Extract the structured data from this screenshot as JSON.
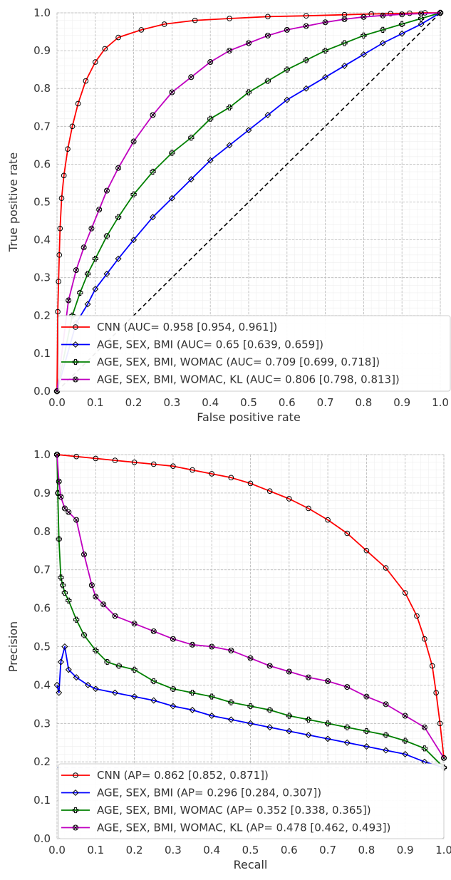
{
  "chart_data": [
    {
      "type": "line",
      "title": "",
      "xlabel": "False positive rate",
      "ylabel": "True positive rate",
      "xlim": [
        0,
        1
      ],
      "ylim": [
        0,
        1
      ],
      "grid": true,
      "legend_position": "lower-right",
      "ticks": [
        "0.0",
        "0.1",
        "0.2",
        "0.3",
        "0.4",
        "0.5",
        "0.6",
        "0.7",
        "0.8",
        "0.9",
        "1.0"
      ],
      "reference_line": {
        "style": "dashed",
        "color": "#000000",
        "x": [
          0,
          1
        ],
        "y": [
          0,
          1
        ]
      },
      "series": [
        {
          "name": "CNN (AUC= 0.958 [0.954, 0.961])",
          "color": "#ff0000",
          "marker": "circle",
          "x": [
            0.0,
            0.002,
            0.004,
            0.006,
            0.008,
            0.012,
            0.018,
            0.028,
            0.04,
            0.055,
            0.075,
            0.1,
            0.125,
            0.16,
            0.22,
            0.28,
            0.36,
            0.45,
            0.55,
            0.65,
            0.75,
            0.82,
            0.87,
            0.92,
            0.96,
            1.0
          ],
          "y": [
            0.0,
            0.21,
            0.29,
            0.36,
            0.43,
            0.51,
            0.57,
            0.64,
            0.7,
            0.76,
            0.82,
            0.87,
            0.905,
            0.935,
            0.955,
            0.97,
            0.98,
            0.985,
            0.99,
            0.992,
            0.995,
            0.997,
            0.998,
            0.999,
            1.0,
            1.0
          ]
        },
        {
          "name": "AGE, SEX, BMI (AUC= 0.65 [0.639, 0.659])",
          "color": "#0000ff",
          "marker": "diamond",
          "x": [
            0.0,
            0.05,
            0.08,
            0.1,
            0.13,
            0.16,
            0.2,
            0.25,
            0.3,
            0.35,
            0.4,
            0.45,
            0.5,
            0.55,
            0.6,
            0.65,
            0.7,
            0.75,
            0.8,
            0.85,
            0.9,
            0.95,
            1.0
          ],
          "y": [
            0.0,
            0.18,
            0.23,
            0.27,
            0.31,
            0.35,
            0.4,
            0.46,
            0.51,
            0.56,
            0.61,
            0.65,
            0.69,
            0.73,
            0.77,
            0.8,
            0.83,
            0.86,
            0.89,
            0.92,
            0.945,
            0.97,
            1.0
          ]
        },
        {
          "name": "AGE, SEX, BMI, WOMAC (AUC= 0.709 [0.699, 0.718])",
          "color": "#008000",
          "marker": "plus",
          "x": [
            0.0,
            0.04,
            0.06,
            0.08,
            0.1,
            0.13,
            0.16,
            0.2,
            0.25,
            0.3,
            0.35,
            0.4,
            0.45,
            0.5,
            0.55,
            0.6,
            0.65,
            0.7,
            0.75,
            0.8,
            0.85,
            0.9,
            0.95,
            1.0
          ],
          "y": [
            0.0,
            0.2,
            0.26,
            0.31,
            0.35,
            0.41,
            0.46,
            0.52,
            0.58,
            0.63,
            0.67,
            0.72,
            0.75,
            0.79,
            0.82,
            0.85,
            0.875,
            0.9,
            0.92,
            0.94,
            0.955,
            0.97,
            0.985,
            1.0
          ]
        },
        {
          "name": "AGE, SEX, BMI, WOMAC, KL (AUC= 0.806 [0.798, 0.813])",
          "color": "#c000c0",
          "marker": "x-circle",
          "x": [
            0.0,
            0.03,
            0.05,
            0.07,
            0.09,
            0.11,
            0.13,
            0.16,
            0.2,
            0.25,
            0.3,
            0.35,
            0.4,
            0.45,
            0.5,
            0.55,
            0.6,
            0.65,
            0.7,
            0.75,
            0.8,
            0.85,
            0.9,
            0.95,
            1.0
          ],
          "y": [
            0.0,
            0.24,
            0.32,
            0.38,
            0.43,
            0.48,
            0.53,
            0.59,
            0.66,
            0.73,
            0.79,
            0.83,
            0.87,
            0.9,
            0.92,
            0.94,
            0.955,
            0.965,
            0.975,
            0.983,
            0.989,
            0.993,
            0.996,
            0.998,
            1.0
          ]
        }
      ]
    },
    {
      "type": "line",
      "title": "",
      "xlabel": "Recall",
      "ylabel": "Precision",
      "xlim": [
        0,
        1
      ],
      "ylim": [
        0,
        1
      ],
      "grid": true,
      "legend_position": "lower-right",
      "ticks": [
        "0.0",
        "0.1",
        "0.2",
        "0.3",
        "0.4",
        "0.5",
        "0.6",
        "0.7",
        "0.8",
        "0.9",
        "1.0"
      ],
      "reference_line": {
        "style": "dashed",
        "color": "#b0b8d8",
        "x": [
          0,
          1
        ],
        "y": [
          0.185,
          0.185
        ]
      },
      "series": [
        {
          "name": "CNN (AP= 0.862 [0.852, 0.871])",
          "color": "#ff0000",
          "marker": "circle",
          "x": [
            0.0,
            0.05,
            0.1,
            0.15,
            0.2,
            0.25,
            0.3,
            0.35,
            0.4,
            0.45,
            0.5,
            0.55,
            0.6,
            0.65,
            0.7,
            0.75,
            0.8,
            0.85,
            0.9,
            0.93,
            0.95,
            0.97,
            0.98,
            0.99,
            1.0
          ],
          "y": [
            1.0,
            0.995,
            0.99,
            0.985,
            0.98,
            0.975,
            0.97,
            0.96,
            0.95,
            0.94,
            0.925,
            0.905,
            0.885,
            0.86,
            0.83,
            0.795,
            0.75,
            0.705,
            0.64,
            0.58,
            0.52,
            0.45,
            0.38,
            0.3,
            0.21
          ]
        },
        {
          "name": "AGE, SEX, BMI  (AP= 0.296 [0.284, 0.307])",
          "color": "#0000ff",
          "marker": "diamond",
          "x": [
            0.0,
            0.005,
            0.01,
            0.02,
            0.03,
            0.05,
            0.08,
            0.1,
            0.15,
            0.2,
            0.25,
            0.3,
            0.35,
            0.4,
            0.45,
            0.5,
            0.55,
            0.6,
            0.65,
            0.7,
            0.75,
            0.8,
            0.85,
            0.9,
            0.95,
            1.0
          ],
          "y": [
            0.4,
            0.38,
            0.46,
            0.5,
            0.44,
            0.42,
            0.4,
            0.39,
            0.38,
            0.37,
            0.36,
            0.345,
            0.335,
            0.32,
            0.31,
            0.3,
            0.29,
            0.28,
            0.27,
            0.26,
            0.25,
            0.24,
            0.23,
            0.22,
            0.2,
            0.185
          ]
        },
        {
          "name": "AGE, SEX, BMI, WOMAC (AP= 0.352 [0.338, 0.365])",
          "color": "#008000",
          "marker": "plus",
          "x": [
            0.0,
            0.002,
            0.005,
            0.01,
            0.015,
            0.02,
            0.03,
            0.05,
            0.07,
            0.1,
            0.13,
            0.16,
            0.2,
            0.25,
            0.3,
            0.35,
            0.4,
            0.45,
            0.5,
            0.55,
            0.6,
            0.65,
            0.7,
            0.75,
            0.8,
            0.85,
            0.9,
            0.95,
            1.0
          ],
          "y": [
            1.0,
            0.9,
            0.78,
            0.68,
            0.66,
            0.64,
            0.62,
            0.57,
            0.53,
            0.49,
            0.46,
            0.45,
            0.44,
            0.41,
            0.39,
            0.38,
            0.37,
            0.355,
            0.345,
            0.335,
            0.32,
            0.31,
            0.3,
            0.29,
            0.28,
            0.27,
            0.255,
            0.235,
            0.185
          ]
        },
        {
          "name": "AGE, SEX, BMI, WOMAC, KL (AP= 0.478 [0.462, 0.493])",
          "color": "#c000c0",
          "marker": "x-circle",
          "x": [
            0.0,
            0.005,
            0.01,
            0.02,
            0.03,
            0.05,
            0.07,
            0.09,
            0.1,
            0.12,
            0.15,
            0.2,
            0.25,
            0.3,
            0.35,
            0.4,
            0.45,
            0.5,
            0.55,
            0.6,
            0.65,
            0.7,
            0.75,
            0.8,
            0.85,
            0.9,
            0.95,
            1.0
          ],
          "y": [
            1.0,
            0.93,
            0.89,
            0.86,
            0.85,
            0.83,
            0.74,
            0.66,
            0.63,
            0.61,
            0.58,
            0.56,
            0.54,
            0.52,
            0.505,
            0.5,
            0.49,
            0.47,
            0.45,
            0.435,
            0.42,
            0.41,
            0.395,
            0.37,
            0.35,
            0.32,
            0.29,
            0.21
          ]
        }
      ]
    }
  ]
}
